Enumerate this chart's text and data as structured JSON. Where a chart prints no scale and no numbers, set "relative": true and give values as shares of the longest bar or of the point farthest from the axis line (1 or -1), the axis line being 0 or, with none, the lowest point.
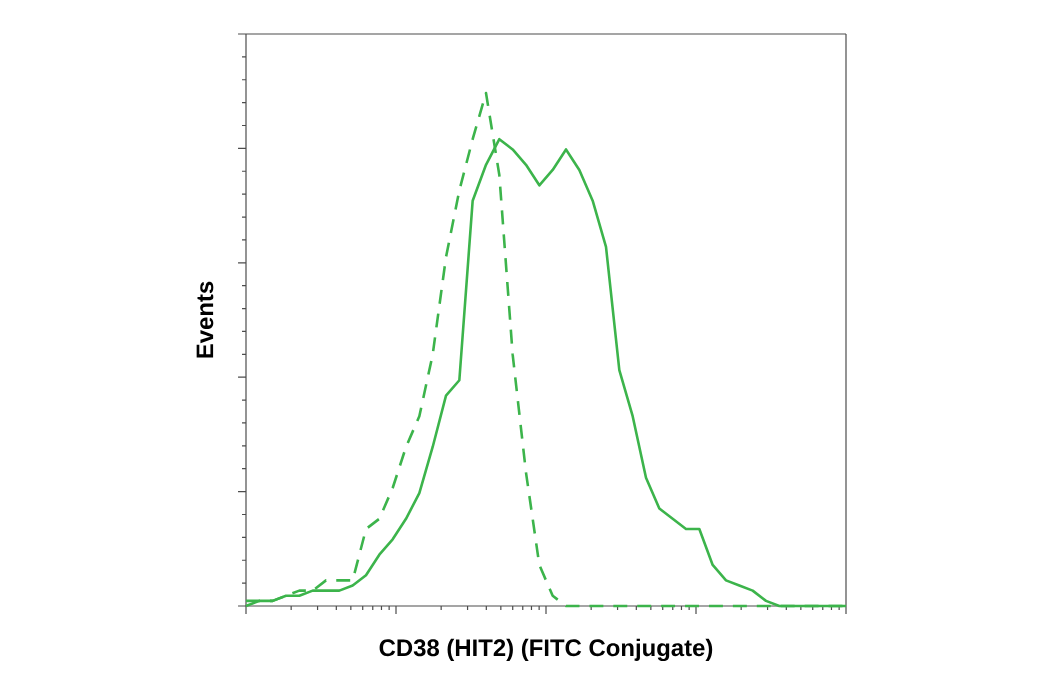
{
  "chart_data": {
    "type": "line",
    "relative": true,
    "xlabel": "CD38 (HIT2) (FITC Conjugate)",
    "ylabel": "Events",
    "categories": [
      null,
      null,
      null,
      null,
      null,
      null,
      null,
      null,
      null,
      null,
      null,
      null,
      null,
      null,
      null,
      null,
      null,
      null,
      null,
      null,
      null,
      null,
      null,
      null,
      null,
      null,
      null,
      null,
      null,
      null,
      null,
      null,
      null,
      null,
      null,
      null,
      null,
      null,
      null,
      null,
      null,
      null,
      null,
      null,
      null,
      null
    ],
    "series": [
      {
        "color": "#3cb44b",
        "line_style": "dashed",
        "values": [
          0.01,
          0.01,
          0.01,
          0.02,
          0.03,
          0.03,
          0.05,
          0.05,
          0.05,
          0.15,
          0.17,
          0.23,
          0.31,
          0.37,
          0.49,
          0.68,
          0.81,
          0.91,
          1,
          0.84,
          0.49,
          0.26,
          0.08,
          0.02,
          0,
          0,
          0,
          0,
          0,
          0,
          0,
          0,
          0,
          0,
          0,
          0,
          0,
          0,
          0,
          0,
          0,
          0,
          0,
          0,
          0,
          0
        ]
      },
      {
        "color": "#3cb44b",
        "line_style": "solid",
        "values": [
          0,
          0.01,
          0.01,
          0.02,
          0.02,
          0.03,
          0.03,
          0.03,
          0.04,
          0.06,
          0.1,
          0.13,
          0.17,
          0.22,
          0.31,
          0.41,
          0.44,
          0.79,
          0.86,
          0.91,
          0.89,
          0.86,
          0.82,
          0.85,
          0.89,
          0.85,
          0.79,
          0.7,
          0.46,
          0.37,
          0.25,
          0.19,
          0.17,
          0.15,
          0.15,
          0.08,
          0.05,
          0.04,
          0.03,
          0.01,
          0,
          0,
          0,
          0,
          0,
          0
        ]
      }
    ]
  }
}
